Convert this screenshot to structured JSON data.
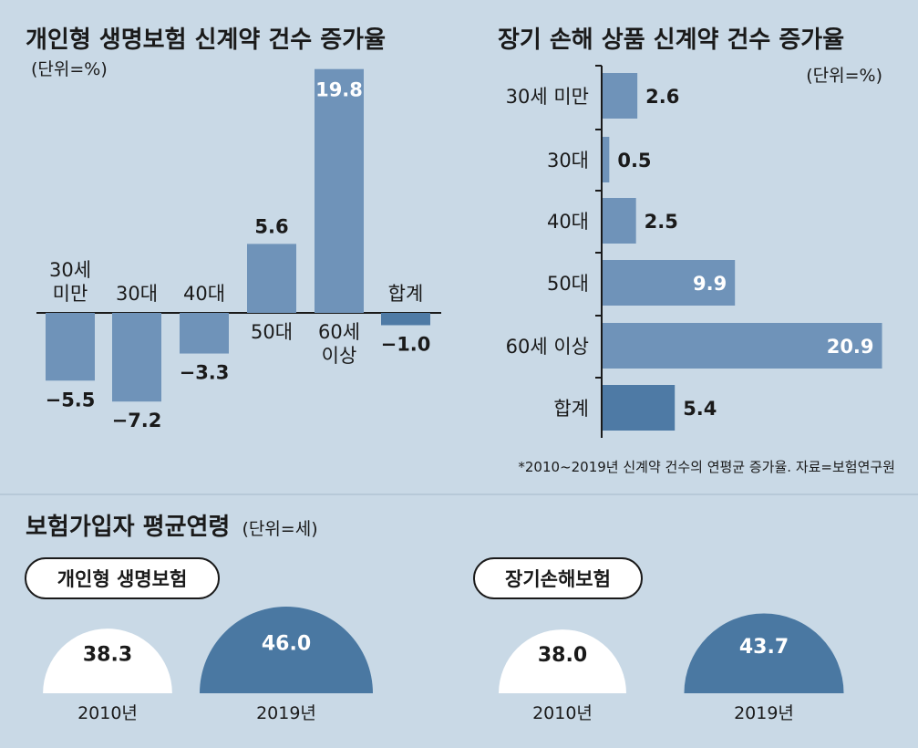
{
  "colors": {
    "background": "#c9d9e6",
    "bar": "#6f93b9",
    "bar_total": "#4e7aa5",
    "dome_2019": "#4a78a2",
    "dome_2010": "#ffffff",
    "text": "#1a1a1a"
  },
  "chart_data": [
    {
      "type": "bar",
      "title": "개인형 생명보험 신계약 건수 증가율",
      "unit": "(단위=%)",
      "categories": [
        [
          "30세",
          "미만"
        ],
        [
          "30대"
        ],
        [
          "40대"
        ],
        [
          "50대"
        ],
        [
          "60세",
          "이상"
        ],
        [
          "합계"
        ]
      ],
      "values": [
        -5.5,
        -7.2,
        -3.3,
        5.6,
        19.8,
        -1.0
      ],
      "value_labels": [
        "−5.5",
        "−7.2",
        "−3.3",
        "5.6",
        "19.8",
        "−1.0"
      ],
      "ylim": [
        -8,
        20
      ]
    },
    {
      "type": "bar",
      "orientation": "horizontal",
      "title": "장기 손해 상품 신계약 건수 증가율",
      "unit": "(단위=%)",
      "categories": [
        "30세 미만",
        "30대",
        "40대",
        "50대",
        "60세 이상",
        "합계"
      ],
      "values": [
        2.6,
        0.5,
        2.5,
        9.9,
        20.9,
        5.4
      ],
      "value_labels": [
        "2.6",
        "0.5",
        "2.5",
        "9.9",
        "20.9",
        "5.4"
      ],
      "xlim": [
        0,
        21
      ]
    },
    {
      "type": "semicircle",
      "title": "보험가입자 평균연령",
      "unit": "(단위=세)",
      "groups": [
        {
          "name": "개인형 생명보험",
          "years": [
            "2010년",
            "2019년"
          ],
          "values": [
            38.3,
            46.0
          ],
          "value_labels": [
            "38.3",
            "46.0"
          ]
        },
        {
          "name": "장기손해보험",
          "years": [
            "2010년",
            "2019년"
          ],
          "values": [
            38.0,
            43.7
          ],
          "value_labels": [
            "38.0",
            "43.7"
          ]
        }
      ]
    }
  ],
  "footnote": "*2010~2019년 신계약 건수의 연평균 증가율. 자료=보험연구원"
}
